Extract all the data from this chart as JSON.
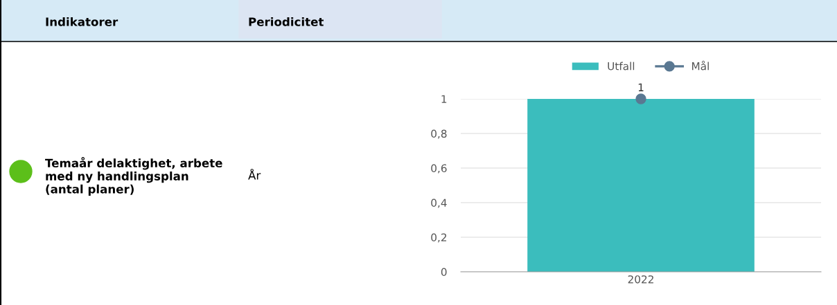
{
  "chart_data": {
    "type": "bar",
    "categories": [
      "2022"
    ],
    "series": [
      {
        "name": "Utfall",
        "color": "#3bbdbd",
        "values": [
          1
        ]
      },
      {
        "name": "Mål",
        "color": "#5a7892",
        "values": [
          1
        ],
        "type": "line",
        "value_labels": [
          "1"
        ]
      }
    ],
    "ylim": [
      0,
      1
    ],
    "yticks": [
      0,
      {
        "value": 0.2,
        "label": "0,2"
      },
      {
        "value": 0.4,
        "label": "0,4"
      },
      {
        "value": 0.6,
        "label": "0,6"
      },
      {
        "value": 0.8,
        "label": "0,8"
      },
      1
    ],
    "grid": "y",
    "legend": "top",
    "marker": "circle",
    "annotations": [
      "Indikatorer",
      "Periodicitet",
      "Temaår delaktighet, arbete med ny handlingsplan (antal planer)",
      "År"
    ]
  }
}
